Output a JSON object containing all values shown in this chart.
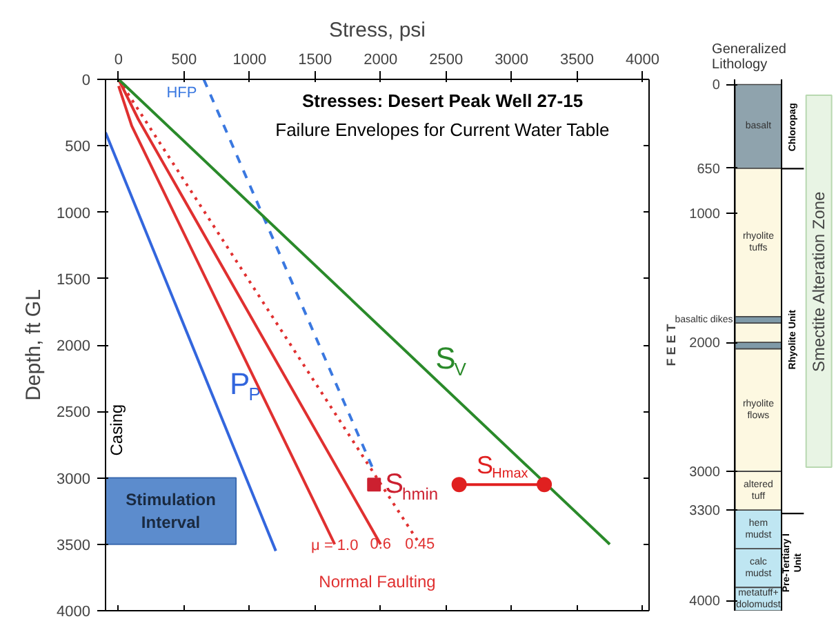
{
  "chart_data": [
    {
      "type": "line",
      "title": "Stresses: Desert Peak Well 27-15",
      "subtitle": "Failure Envelopes for Current Water Table",
      "xlabel": "Stress, psi",
      "ylabel": "Depth, ft GL",
      "xlim": [
        -100,
        4050
      ],
      "ylim": [
        4000,
        0
      ],
      "xticks": [
        0,
        500,
        1000,
        1500,
        2000,
        2500,
        3000,
        3500,
        4000
      ],
      "yticks": [
        0,
        500,
        1000,
        1500,
        2000,
        2500,
        3000,
        3500,
        4000
      ],
      "series": [
        {
          "name": "P$_{P}$",
          "color": "#3366dd",
          "x": [
            -100,
            1200
          ],
          "values": [
            400,
            3550
          ]
        },
        {
          "name": "μ = 1.0",
          "color": "#e03030",
          "x": [
            0,
            100,
            1650
          ],
          "values": [
            50,
            350,
            3500
          ]
        },
        {
          "name": "0.6",
          "color": "#e03030",
          "x": [
            0,
            150,
            2000
          ],
          "values": [
            0,
            300,
            3500
          ]
        },
        {
          "name": "0.45",
          "color": "#e03030",
          "x": [
            0,
            2300
          ],
          "values": [
            0,
            3500
          ],
          "line_style": "dotted"
        },
        {
          "name": "HFP",
          "color": "#3a78e0",
          "x": [
            650,
            1950
          ],
          "values": [
            0,
            2950
          ],
          "line_style": "dashed"
        },
        {
          "name": "S$_{V}$",
          "color": "#2a8a2a",
          "x": [
            0,
            3750
          ],
          "values": [
            0,
            3500
          ]
        },
        {
          "name": "S$_{hmin}$",
          "type": "scatter",
          "marker": "square",
          "color": "#cc2030",
          "x": [
            1950
          ],
          "values": [
            3050
          ]
        },
        {
          "name": "S$_{Hmax}$",
          "color": "#e02020",
          "marker": "circle",
          "x": [
            2600,
            3250
          ],
          "values": [
            3050,
            3050
          ]
        }
      ],
      "bands": [
        {
          "axis": "y",
          "from": 3000,
          "to": 3500,
          "label": "Stimulation Interval",
          "color": "#4a7fc8"
        }
      ],
      "annotations": [
        "Casing",
        "Normal Faulting"
      ]
    },
    {
      "type": "bar",
      "stacked": true,
      "title": "Generalized Lithology",
      "ylabel": "F E E T",
      "categories": [
        null
      ],
      "ylim": [
        4080,
        -40
      ],
      "yticks": [
        0,
        650,
        1000,
        2000,
        3000,
        3300,
        4000
      ],
      "series": [
        {
          "name": "basalt",
          "color": "#8fa3ad",
          "values": [
            650
          ]
        },
        {
          "name": "rhyolite tuffs",
          "color": "#fdf8e1",
          "values": [
            1150
          ]
        },
        {
          "name": "basaltic dikes",
          "color": "#7f9aa8",
          "values": [
            50
          ]
        },
        {
          "color": "#fdf8e1",
          "values": [
            150
          ]
        },
        {
          "color": "#7f9aa8",
          "values": [
            50
          ]
        },
        {
          "name": "rhyolite flows",
          "color": "#fdf8e1",
          "values": [
            950
          ]
        },
        {
          "name": "altered tuff",
          "color": "#fdf8e1",
          "values": [
            300
          ]
        },
        {
          "name": "hem mudst",
          "color": "#bfe6f2",
          "values": [
            300
          ]
        },
        {
          "name": "calc mudst",
          "color": "#bfe6f2",
          "values": [
            300
          ]
        },
        {
          "name": "metatuff+ dolomudst",
          "color": "#bfe6f2",
          "values": [
            180
          ]
        }
      ],
      "annotations": [
        "Chloropag",
        "Rhyolite Unit",
        "Pre-Tertiary I Unit",
        "Smectite Alteration Zone"
      ]
    }
  ]
}
